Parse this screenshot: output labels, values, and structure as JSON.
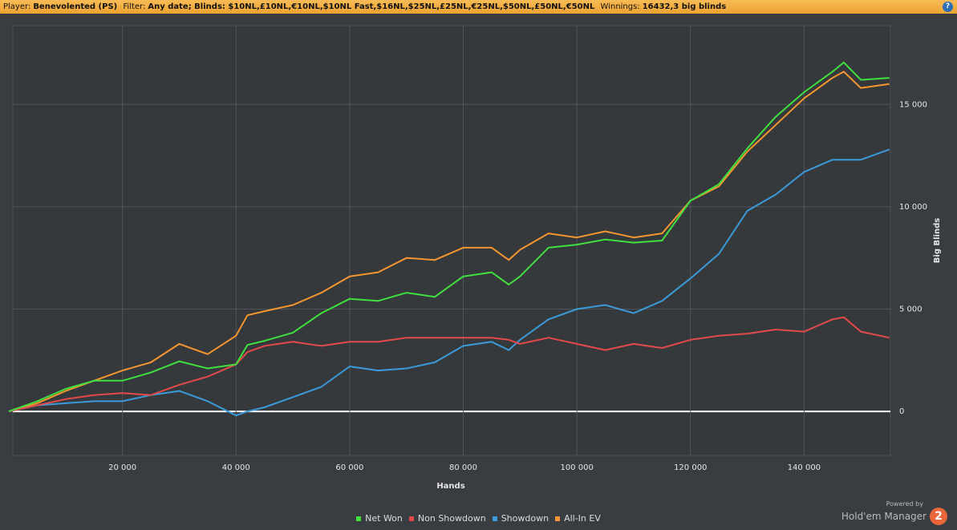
{
  "header": {
    "player_label": "Player:",
    "player": "Benevolented (PS)",
    "filter_label": "Filter:",
    "filter": "Any date; Blinds: $10NL,£10NL,€10NL,$10NL Fast,$16NL,$25NL,£25NL,€25NL,$50NL,£50NL,€50NL",
    "winnings_label": "Winnings:",
    "winnings": "16432,3 big blinds",
    "help": "?"
  },
  "branding": {
    "powered_by": "Powered by",
    "product": "Hold'em Manager",
    "version": "2"
  },
  "chart_data": {
    "type": "line",
    "x_label": "Hands",
    "y_label": "Big Blinds",
    "x": [
      0,
      5000,
      10000,
      15000,
      20000,
      25000,
      30000,
      35000,
      40000,
      42000,
      45000,
      50000,
      55000,
      60000,
      65000,
      70000,
      75000,
      80000,
      85000,
      88000,
      90000,
      95000,
      100000,
      105000,
      110000,
      115000,
      120000,
      125000,
      130000,
      135000,
      140000,
      145000,
      147000,
      150000,
      155000
    ],
    "series": [
      {
        "name": "Net Won",
        "color": "#3fe03f",
        "values": [
          0,
          500,
          1100,
          1500,
          1500,
          1900,
          2450,
          2100,
          2300,
          3250,
          3450,
          3850,
          4800,
          5500,
          5400,
          5800,
          5600,
          6600,
          6800,
          6200,
          6600,
          8000,
          8150,
          8400,
          8250,
          8350,
          10300,
          11100,
          12850,
          14400,
          15600,
          16600,
          17050,
          16200,
          16300
        ]
      },
      {
        "name": "Non Showdown",
        "color": "#e24a4a",
        "values": [
          0,
          300,
          600,
          800,
          900,
          800,
          1300,
          1700,
          2300,
          2900,
          3200,
          3400,
          3200,
          3400,
          3400,
          3600,
          3600,
          3600,
          3600,
          3500,
          3300,
          3600,
          3300,
          3000,
          3300,
          3100,
          3500,
          3700,
          3800,
          4000,
          3900,
          4500,
          4600,
          3900,
          3600
        ]
      },
      {
        "name": "Showdown",
        "color": "#3b9ad8",
        "values": [
          0,
          300,
          400,
          500,
          500,
          800,
          1000,
          500,
          -200,
          0,
          200,
          700,
          1200,
          2200,
          2000,
          2100,
          2400,
          3200,
          3400,
          3000,
          3500,
          4500,
          5000,
          5200,
          4800,
          5400,
          6500,
          7700,
          9800,
          10600,
          11700,
          12300,
          12300,
          12300,
          12800
        ]
      },
      {
        "name": "All-In EV",
        "color": "#f39530",
        "values": [
          0,
          400,
          1000,
          1500,
          2000,
          2400,
          3300,
          2800,
          3700,
          4700,
          4900,
          5200,
          5800,
          6600,
          6800,
          7500,
          7400,
          8000,
          8000,
          7400,
          7900,
          8700,
          8500,
          8800,
          8500,
          8700,
          10300,
          11000,
          12700,
          14000,
          15300,
          16300,
          16600,
          15800,
          16000
        ]
      }
    ],
    "xlim": [
      700,
      155200
    ],
    "ylim": [
      -2150,
      18850
    ],
    "xticks": [
      {
        "value": 20000,
        "label": "20 000"
      },
      {
        "value": 40000,
        "label": "40 000"
      },
      {
        "value": 60000,
        "label": "60 000"
      },
      {
        "value": 80000,
        "label": "80 000"
      },
      {
        "value": 100000,
        "label": "100 000"
      },
      {
        "value": 120000,
        "label": "120 000"
      },
      {
        "value": 140000,
        "label": "140 000"
      }
    ],
    "yticks": [
      0,
      {
        "value": 5000,
        "label": "5 000"
      },
      {
        "value": 10000,
        "label": "10 000"
      },
      {
        "value": 15000,
        "label": "15 000"
      }
    ],
    "grid": true,
    "legend": "bottom"
  }
}
